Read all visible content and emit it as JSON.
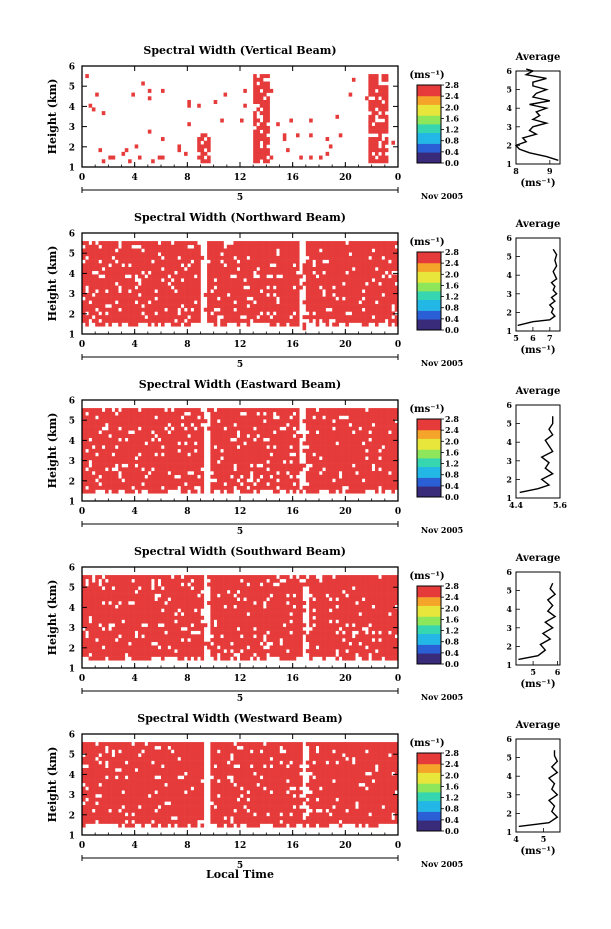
{
  "chart_data": [
    {
      "type": "heatmap",
      "title": "Spectral Width (Vertical Beam)",
      "xlabel": "",
      "ylabel": "Height (km)",
      "xticks": [
        "0",
        "4",
        "8",
        "12",
        "16",
        "20",
        "0"
      ],
      "xlim": [
        0,
        24
      ],
      "day_label": "5",
      "date_label": "Nov 2005",
      "yticks": [
        "1",
        "2",
        "3",
        "4",
        "5",
        "6"
      ],
      "ylim": [
        1,
        6
      ],
      "colorbar": {
        "unit_label": "(ms⁻¹)",
        "ticks": [
          "0.0",
          "0.4",
          "0.8",
          "1.2",
          "1.6",
          "2.0",
          "2.4",
          "2.8"
        ]
      },
      "cells_fill": "mostly blank; scattered red cells; dense red columns near 13–14 h and 21.5–23 h",
      "average": {
        "title": "Average",
        "xticks": [
          "8",
          "9"
        ],
        "xlim": [
          8.0,
          9.3
        ],
        "xlabel": "(ms⁻¹)",
        "yticks": [
          "1",
          "2",
          "3",
          "4",
          "5",
          "6"
        ],
        "x": [
          9.25,
          8.9,
          8.4,
          8.1,
          8.0,
          8.3,
          8.2,
          8.6,
          8.4,
          8.5,
          8.9,
          8.5,
          8.7,
          8.6,
          8.9,
          8.4,
          9.0,
          8.5,
          8.6,
          8.9,
          8.5,
          8.5,
          8.9,
          8.3,
          8.5,
          8.3
        ],
        "y": [
          1.2,
          1.4,
          1.6,
          1.8,
          2.0,
          2.2,
          2.4,
          2.6,
          2.8,
          3.0,
          3.2,
          3.4,
          3.6,
          3.8,
          4.0,
          4.2,
          4.4,
          4.6,
          4.8,
          5.0,
          5.2,
          5.4,
          5.6,
          5.8,
          6.0,
          6.1
        ]
      }
    },
    {
      "type": "heatmap",
      "title": "Spectral Width (Northward Beam)",
      "xlabel": "",
      "ylabel": "Height (km)",
      "xticks": [
        "0",
        "4",
        "8",
        "12",
        "16",
        "20",
        "0"
      ],
      "xlim": [
        0,
        24
      ],
      "day_label": "5",
      "date_label": "Nov 2005",
      "yticks": [
        "1",
        "2",
        "3",
        "4",
        "5",
        "6"
      ],
      "ylim": [
        1,
        6
      ],
      "colorbar": {
        "unit_label": "(ms⁻¹)",
        "ticks": [
          "0.0",
          "0.4",
          "0.8",
          "1.2",
          "1.6",
          "2.0",
          "2.4",
          "2.8"
        ]
      },
      "cells_fill": "mostly red from 1.5 to 5.4 km, gaps near 9 h and 16.5 h",
      "average": {
        "title": "Average",
        "xticks": [
          "5",
          "6",
          "7"
        ],
        "xlim": [
          5.0,
          7.6
        ],
        "xlabel": "(ms⁻¹)",
        "yticks": [
          "1",
          "2",
          "3",
          "4",
          "5",
          "6"
        ],
        "x": [
          5.1,
          6.0,
          7.0,
          7.3,
          7.1,
          7.2,
          7.0,
          7.3,
          7.1,
          7.4,
          7.2,
          7.3,
          7.1,
          7.4,
          7.3,
          7.2,
          7.4,
          7.3,
          7.4,
          7.2
        ],
        "y": [
          1.3,
          1.5,
          1.6,
          1.8,
          2.0,
          2.2,
          2.4,
          2.6,
          2.8,
          3.0,
          3.2,
          3.4,
          3.6,
          3.8,
          4.0,
          4.2,
          4.5,
          4.8,
          5.1,
          5.4
        ]
      }
    },
    {
      "type": "heatmap",
      "title": "Spectral Width (Eastward Beam)",
      "xlabel": "",
      "ylabel": "Height (km)",
      "xticks": [
        "0",
        "4",
        "8",
        "12",
        "16",
        "20",
        "0"
      ],
      "xlim": [
        0,
        24
      ],
      "day_label": "5",
      "date_label": "Nov 2005",
      "yticks": [
        "1",
        "2",
        "3",
        "4",
        "5",
        "6"
      ],
      "ylim": [
        1,
        6
      ],
      "colorbar": {
        "unit_label": "(ms⁻¹)",
        "ticks": [
          "0.0",
          "0.4",
          "0.8",
          "1.2",
          "1.6",
          "2.0",
          "2.4",
          "2.8"
        ]
      },
      "cells_fill": "mostly red from 1.5 to 5.4 km, gaps near 9 h and 16.5 h",
      "average": {
        "title": "Average",
        "xticks": [
          "4.4",
          "5.6"
        ],
        "xlim": [
          4.4,
          5.6
        ],
        "xlabel": "",
        "yticks": [
          "1",
          "2",
          "3",
          "4",
          "5",
          "6"
        ],
        "x": [
          4.5,
          5.0,
          5.3,
          5.1,
          5.4,
          5.2,
          5.3,
          5.1,
          5.4,
          5.3,
          5.2,
          5.4,
          5.3,
          5.4,
          5.4
        ],
        "y": [
          1.3,
          1.5,
          1.7,
          2.0,
          2.3,
          2.6,
          2.9,
          3.2,
          3.5,
          3.8,
          4.1,
          4.4,
          4.7,
          5.0,
          5.4
        ]
      }
    },
    {
      "type": "heatmap",
      "title": "Spectral Width (Southward Beam)",
      "xlabel": "",
      "ylabel": "Height (km)",
      "xticks": [
        "0",
        "4",
        "8",
        "12",
        "16",
        "20",
        "0"
      ],
      "xlim": [
        0,
        24
      ],
      "day_label": "5",
      "date_label": "Nov 2005",
      "yticks": [
        "1",
        "2",
        "3",
        "4",
        "5",
        "6"
      ],
      "ylim": [
        1,
        6
      ],
      "colorbar": {
        "unit_label": "(ms⁻¹)",
        "ticks": [
          "0.0",
          "0.4",
          "0.8",
          "1.2",
          "1.6",
          "2.0",
          "2.4",
          "2.8"
        ]
      },
      "cells_fill": "mostly red from 1.5 to 5.4 km, gaps near 9 h and 17 h",
      "average": {
        "title": "Average",
        "xticks": [
          "5",
          "6"
        ],
        "xlim": [
          4.3,
          6.1
        ],
        "xlabel": "(ms⁻¹)",
        "yticks": [
          "1",
          "2",
          "3",
          "4",
          "5",
          "6"
        ],
        "x": [
          4.4,
          5.2,
          5.5,
          5.3,
          5.7,
          5.4,
          5.8,
          5.5,
          5.9,
          5.6,
          5.8,
          5.6,
          5.9,
          5.7,
          5.8
        ],
        "y": [
          1.3,
          1.5,
          1.8,
          2.1,
          2.4,
          2.7,
          3.0,
          3.3,
          3.6,
          3.9,
          4.2,
          4.5,
          4.8,
          5.1,
          5.4
        ]
      }
    },
    {
      "type": "heatmap",
      "title": "Spectral Width (Westward Beam)",
      "xlabel": "Local Time",
      "ylabel": "Height (km)",
      "xticks": [
        "0",
        "4",
        "8",
        "12",
        "16",
        "20",
        "0"
      ],
      "xlim": [
        0,
        24
      ],
      "day_label": "5",
      "date_label": "Nov 2005",
      "yticks": [
        "1",
        "2",
        "3",
        "4",
        "5",
        "6"
      ],
      "ylim": [
        1,
        6
      ],
      "colorbar": {
        "unit_label": "(ms⁻¹)",
        "ticks": [
          "0.0",
          "0.4",
          "0.8",
          "1.2",
          "1.6",
          "2.0",
          "2.4",
          "2.8"
        ]
      },
      "cells_fill": "mostly red from 1.5 to 5.4 km, gaps near 9 h and 17 h",
      "average": {
        "title": "Average",
        "xticks": [
          "4",
          "5"
        ],
        "xlim": [
          4.0,
          5.6
        ],
        "xlabel": "(ms⁻¹)",
        "yticks": [
          "1",
          "2",
          "3",
          "4",
          "5",
          "6"
        ],
        "x": [
          4.1,
          5.2,
          5.5,
          5.3,
          5.4,
          5.2,
          5.5,
          5.3,
          5.4,
          5.2,
          5.5,
          5.3,
          5.5,
          5.4,
          5.4
        ],
        "y": [
          1.3,
          1.5,
          1.8,
          2.1,
          2.4,
          2.7,
          3.0,
          3.3,
          3.6,
          3.9,
          4.2,
          4.5,
          4.8,
          5.1,
          5.4
        ]
      }
    }
  ],
  "colors": {
    "cell": "#e63b3b",
    "colormap": [
      "#3a2a7a",
      "#2a5fd6",
      "#23b7e6",
      "#36d6b0",
      "#8ee65a",
      "#e8e63a",
      "#f5a52a",
      "#e63b3b"
    ]
  }
}
